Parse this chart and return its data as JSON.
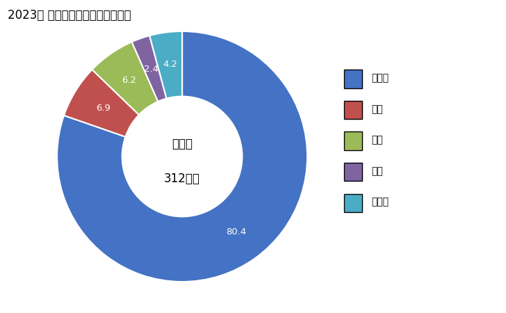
{
  "title": "2023年 輸出相手国のシェア（％）",
  "labels": [
    "インド",
    "米国",
    "タイ",
    "英国",
    "その他"
  ],
  "values": [
    80.4,
    6.9,
    6.2,
    2.4,
    4.2
  ],
  "colors": [
    "#4472C4",
    "#C0504D",
    "#9BBB59",
    "#8064A2",
    "#4BACC6"
  ],
  "center_label_line1": "総　額",
  "center_label_line2": "312億円",
  "bg_color": "#FFFFFF",
  "legend_labels": [
    "インド",
    "米国",
    "タイ",
    "英国",
    "その他"
  ]
}
